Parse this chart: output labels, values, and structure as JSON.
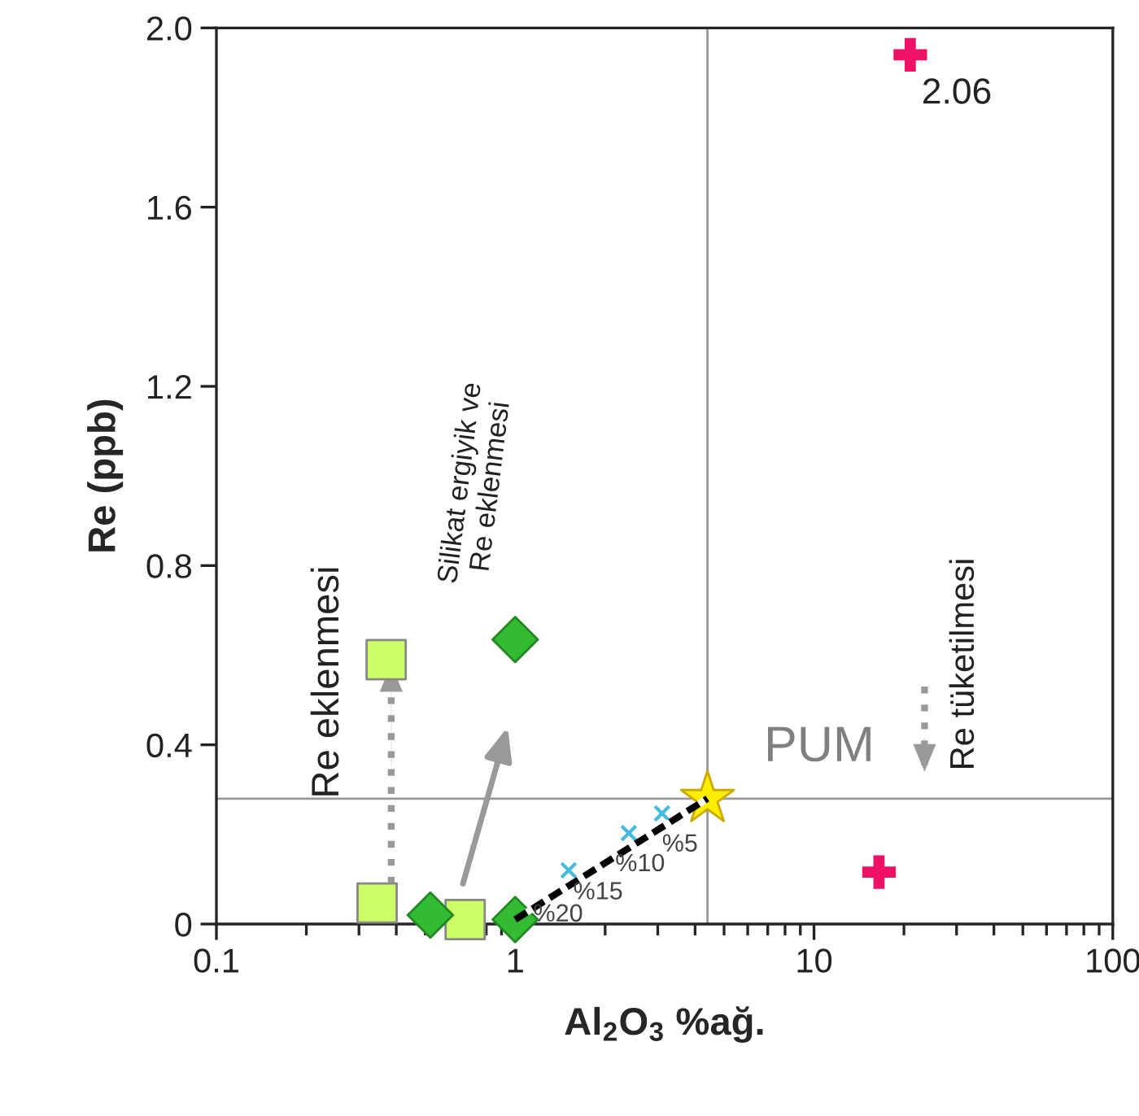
{
  "chart_data": {
    "type": "scatter",
    "xlabel": "Al$_{2}$O$_{3}$ %ağ.",
    "ylabel": "Re (ppb)",
    "log": "x",
    "xlim": [
      0.1,
      100
    ],
    "xticks": [
      0.1,
      1,
      10,
      100
    ],
    "ylim": [
      0,
      2.0
    ],
    "yticks": [
      0,
      0.4,
      0.8,
      1.2,
      1.6,
      {
        "value": 2.0,
        "label": "2.0"
      }
    ],
    "grid": false,
    "legend": false,
    "series": [
      {
        "type": "scatter",
        "marker": "square",
        "color": "#ccff66",
        "x": [
          0.345,
          0.37,
          0.68
        ],
        "values": [
          0.047,
          0.59,
          0.01
        ]
      },
      {
        "type": "scatter",
        "marker": "diamond",
        "color": "#33bb33",
        "x": [
          0.52,
          1.0,
          1.0
        ],
        "values": [
          0.02,
          0.01,
          0.635
        ]
      },
      {
        "type": "scatter",
        "marker": "cross",
        "color": "#ee1166",
        "x": [
          21,
          16.5
        ],
        "values": [
          1.94,
          0.116
        ]
      },
      {
        "type": "line",
        "line_style": "dashed",
        "marker": "none",
        "color": "#000000",
        "x": [
          1.0,
          4.4
        ],
        "values": [
          0.01,
          0.28
        ]
      },
      {
        "type": "scatter",
        "marker": "cross",
        "color": "#44bbdd",
        "x": [
          1.51,
          2.4,
          3.1
        ],
        "values": [
          0.12,
          0.203,
          0.247
        ]
      },
      {
        "type": "scatter",
        "marker": "star",
        "color": "#ffee00",
        "x": [
          4.4
        ],
        "values": [
          0.28
        ]
      }
    ],
    "ref_lines": [
      {
        "axis": "x",
        "value": 4.4,
        "color": "#999999"
      },
      {
        "axis": "y",
        "value": 0.28,
        "color": "#999999"
      }
    ],
    "annotations": [
      {
        "text": "PUM",
        "x": 4.4,
        "y": 0.28
      },
      {
        "text": "2.06",
        "x": 21,
        "y": 1.94
      },
      {
        "text": "%5",
        "x": 3.1,
        "y": 0.247
      },
      {
        "text": "%10",
        "x": 2.4,
        "y": 0.203
      },
      {
        "text": "%15",
        "x": 1.51,
        "y": 0.12
      },
      {
        "text": "%20",
        "x": 1.0,
        "y": 0.01
      },
      "Re eklenmesi",
      "Silikat ergiyik ve\nRe eklenmesi",
      "Re tüketilmesi"
    ]
  }
}
